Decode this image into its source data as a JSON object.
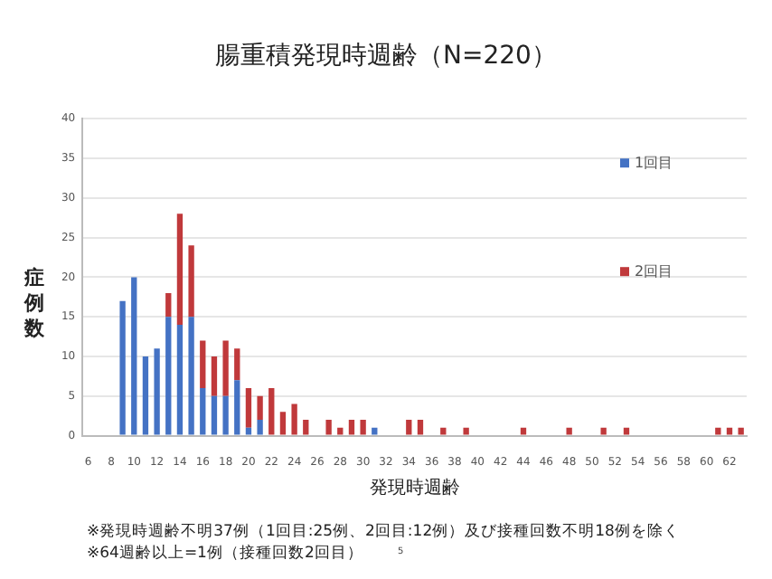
{
  "chart_data": {
    "type": "bar",
    "title": "腸重積発現時週齢（N=220）",
    "xlabel": "発現時週齢",
    "ylabel": "症例数",
    "categories": [
      "6",
      null,
      "8",
      null,
      "10",
      null,
      "12",
      null,
      "14",
      null,
      "16",
      null,
      "18",
      null,
      "20",
      null,
      "22",
      null,
      "24",
      null,
      "26",
      null,
      "28",
      null,
      "30",
      null,
      "32",
      null,
      "34",
      null,
      "36",
      null,
      "38",
      null,
      "40",
      null,
      "42",
      null,
      "44",
      null,
      "46",
      null,
      "48",
      null,
      "50",
      null,
      "52",
      null,
      "54",
      null,
      "56",
      null,
      "58",
      null,
      "60",
      null,
      "62",
      null
    ],
    "series": [
      {
        "name": "1回目",
        "color": "#4472c4",
        "values": [
          0,
          0,
          0,
          17,
          20,
          10,
          11,
          15,
          14,
          15,
          6,
          5,
          5,
          7,
          1,
          2,
          0,
          0,
          0,
          0,
          0,
          0,
          0,
          0,
          0,
          1,
          0,
          0,
          0,
          0,
          0,
          0,
          0,
          0,
          0,
          0,
          0,
          0,
          0,
          0,
          0,
          0,
          0,
          0,
          0,
          0,
          0,
          0,
          0,
          0,
          0,
          0,
          0,
          0,
          0,
          0,
          0,
          0
        ]
      },
      {
        "name": "2回目",
        "color": "#c0393b",
        "values": [
          0,
          0,
          0,
          0,
          0,
          0,
          0,
          3,
          14,
          9,
          6,
          5,
          7,
          4,
          5,
          3,
          6,
          3,
          4,
          2,
          0,
          2,
          1,
          2,
          2,
          0,
          0,
          0,
          2,
          2,
          0,
          1,
          0,
          1,
          0,
          0,
          0,
          0,
          1,
          0,
          0,
          0,
          1,
          0,
          0,
          1,
          0,
          1,
          0,
          0,
          0,
          0,
          0,
          0,
          0,
          1,
          1,
          1
        ]
      }
    ],
    "stacked": true,
    "ylim": [
      0,
      40
    ],
    "yticks": [
      0,
      5,
      10,
      15,
      20,
      25,
      30,
      35,
      40
    ],
    "grid": "y",
    "legend": "top right",
    "annotations": [
      "※発現時週齢不明37例（1回目:25例、2回目:12例）及び接種回数不明18例を除く",
      "※64週齢以上=1例（接種回数2回目）",
      "5"
    ]
  }
}
